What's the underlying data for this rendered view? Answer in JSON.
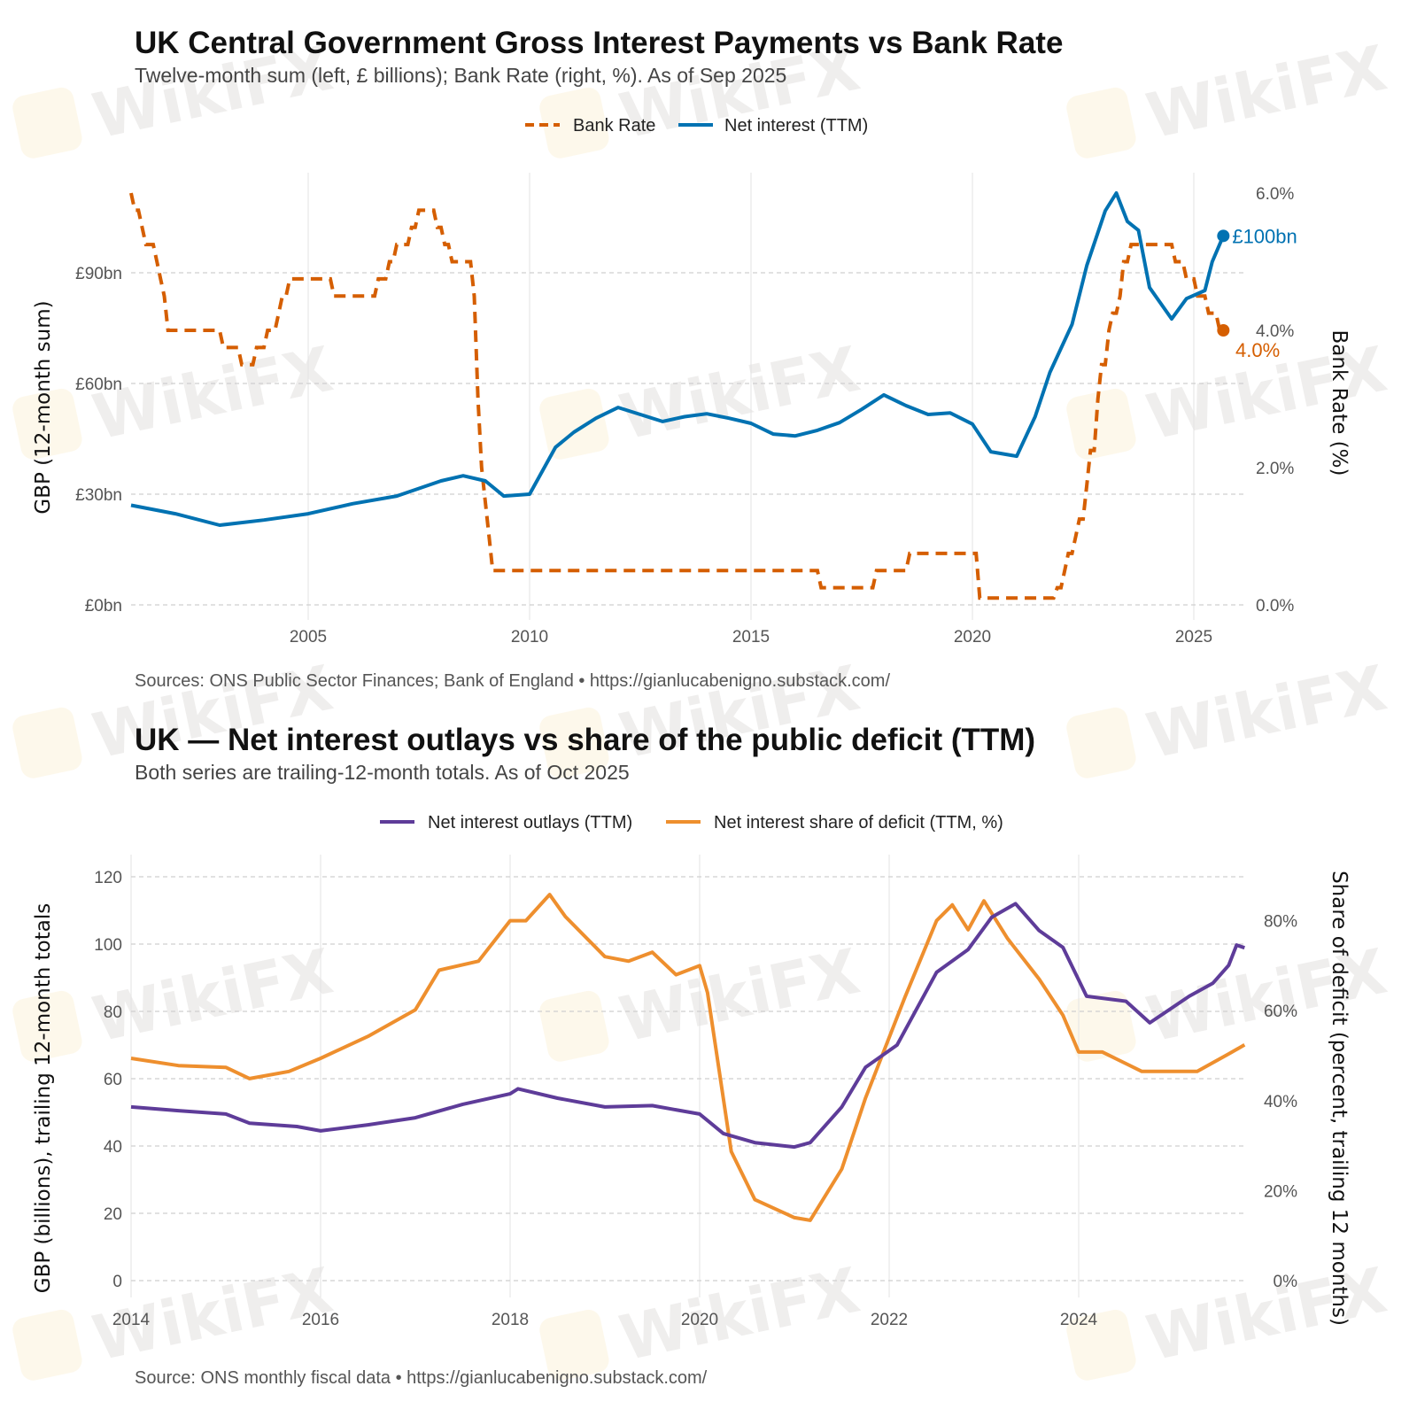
{
  "watermark": "WikiFX",
  "chart_data": [
    {
      "type": "line",
      "title": "UK Central Government Gross Interest Payments vs Bank Rate",
      "subtitle": "Twelve-month sum (left, £ billions); Bank Rate (right, %). As of Sep 2025",
      "caption": "Sources: ONS Public Sector Finances; Bank of England • https://gianlucabenigno.substack.com/",
      "ylabel": "GBP (12-month sum)",
      "ylabel_right": "Bank Rate (%)",
      "xlim": [
        "2001-01",
        "2025-09"
      ],
      "ylim": [
        0,
        112
      ],
      "ylim_right": [
        0,
        6.0
      ],
      "x_ticks": [
        "2005",
        "2010",
        "2015",
        "2020",
        "2025"
      ],
      "y_ticks": [
        "£0bn",
        "£30bn",
        "£60bn",
        "£90bn"
      ],
      "y_tick_values": [
        0,
        30,
        60,
        90
      ],
      "y_right_ticks": [
        "0.0%",
        "2.0%",
        "4.0%",
        "6.0%"
      ],
      "y_right_tick_values": [
        0,
        2,
        4,
        6
      ],
      "grid": true,
      "legend_position": "top",
      "series": [
        {
          "name": "Bank Rate",
          "axis": "right",
          "color": "#D55E00",
          "style": "dashed",
          "step": true,
          "end_label": "4.0%",
          "points": [
            [
              "2001-01",
              6.0
            ],
            [
              "2001-02",
              5.75
            ],
            [
              "2001-04",
              5.5
            ],
            [
              "2001-05",
              5.25
            ],
            [
              "2001-08",
              5.0
            ],
            [
              "2001-09",
              4.75
            ],
            [
              "2001-10",
              4.5
            ],
            [
              "2001-11",
              4.0
            ],
            [
              "2003-02",
              3.75
            ],
            [
              "2003-07",
              3.5
            ],
            [
              "2003-11",
              3.75
            ],
            [
              "2004-02",
              4.0
            ],
            [
              "2004-05",
              4.25
            ],
            [
              "2004-06",
              4.5
            ],
            [
              "2004-08",
              4.75
            ],
            [
              "2005-08",
              4.5
            ],
            [
              "2006-08",
              4.75
            ],
            [
              "2006-11",
              5.0
            ],
            [
              "2007-01",
              5.25
            ],
            [
              "2007-05",
              5.5
            ],
            [
              "2007-07",
              5.75
            ],
            [
              "2007-12",
              5.5
            ],
            [
              "2008-02",
              5.25
            ],
            [
              "2008-04",
              5.0
            ],
            [
              "2008-10",
              4.5
            ],
            [
              "2008-11",
              3.0
            ],
            [
              "2008-12",
              2.0
            ],
            [
              "2009-01",
              1.5
            ],
            [
              "2009-02",
              1.0
            ],
            [
              "2009-03",
              0.5
            ],
            [
              "2016-08",
              0.25
            ],
            [
              "2017-11",
              0.5
            ],
            [
              "2018-08",
              0.75
            ],
            [
              "2020-03",
              0.1
            ],
            [
              "2021-12",
              0.25
            ],
            [
              "2022-02",
              0.5
            ],
            [
              "2022-03",
              0.75
            ],
            [
              "2022-05",
              1.0
            ],
            [
              "2022-06",
              1.25
            ],
            [
              "2022-08",
              1.75
            ],
            [
              "2022-09",
              2.25
            ],
            [
              "2022-11",
              3.0
            ],
            [
              "2022-12",
              3.5
            ],
            [
              "2023-02",
              4.0
            ],
            [
              "2023-03",
              4.25
            ],
            [
              "2023-05",
              4.5
            ],
            [
              "2023-06",
              5.0
            ],
            [
              "2023-08",
              5.25
            ],
            [
              "2024-08",
              5.0
            ],
            [
              "2024-11",
              4.75
            ],
            [
              "2025-02",
              4.5
            ],
            [
              "2025-05",
              4.25
            ],
            [
              "2025-08",
              4.0
            ],
            [
              "2025-09",
              4.0
            ]
          ]
        },
        {
          "name": "Net interest (TTM)",
          "axis": "left",
          "color": "#0072B2",
          "style": "solid",
          "end_label": "£100bn",
          "points": [
            [
              "2001-01",
              27.0
            ],
            [
              "2002-01",
              24.7
            ],
            [
              "2003-01",
              21.6
            ],
            [
              "2004-01",
              23.0
            ],
            [
              "2005-01",
              24.7
            ],
            [
              "2006-01",
              27.4
            ],
            [
              "2007-01",
              29.5
            ],
            [
              "2008-01",
              33.6
            ],
            [
              "2008-07",
              35.0
            ],
            [
              "2009-01",
              33.6
            ],
            [
              "2009-06",
              29.5
            ],
            [
              "2010-01",
              30.0
            ],
            [
              "2010-08",
              42.7
            ],
            [
              "2011-01",
              46.8
            ],
            [
              "2011-07",
              50.6
            ],
            [
              "2012-01",
              53.5
            ],
            [
              "2012-07",
              51.6
            ],
            [
              "2013-01",
              49.7
            ],
            [
              "2013-07",
              51.0
            ],
            [
              "2014-01",
              51.8
            ],
            [
              "2014-07",
              50.6
            ],
            [
              "2015-01",
              49.2
            ],
            [
              "2015-07",
              46.3
            ],
            [
              "2016-01",
              45.8
            ],
            [
              "2016-07",
              47.3
            ],
            [
              "2017-01",
              49.4
            ],
            [
              "2017-07",
              53.0
            ],
            [
              "2018-01",
              56.9
            ],
            [
              "2018-07",
              54.0
            ],
            [
              "2019-01",
              51.6
            ],
            [
              "2019-07",
              52.0
            ],
            [
              "2020-01",
              49.0
            ],
            [
              "2020-06",
              41.5
            ],
            [
              "2021-01",
              40.3
            ],
            [
              "2021-06",
              51.0
            ],
            [
              "2021-10",
              63.0
            ],
            [
              "2022-04",
              76.0
            ],
            [
              "2022-08",
              92.0
            ],
            [
              "2023-01",
              106.8
            ],
            [
              "2023-04",
              111.6
            ],
            [
              "2023-07",
              103.9
            ],
            [
              "2023-10",
              101.5
            ],
            [
              "2024-01",
              86.0
            ],
            [
              "2024-07",
              77.5
            ],
            [
              "2024-11",
              83.0
            ],
            [
              "2025-04",
              85.2
            ],
            [
              "2025-06",
              93.0
            ],
            [
              "2025-09",
              100.0
            ]
          ]
        }
      ]
    },
    {
      "type": "line",
      "title": "UK — Net interest outlays vs share of the public deficit (TTM)",
      "subtitle": "Both series are trailing-12-month totals. As of Oct 2025",
      "caption": "Source: ONS monthly fiscal data • https://gianlucabenigno.substack.com/",
      "ylabel": "GBP (billions), trailing 12-month totals",
      "ylabel_right": "Share of deficit (percent, trailing 12 months)",
      "xlim": [
        "2014-01",
        "2025-10"
      ],
      "ylim": [
        0,
        120
      ],
      "ylim_right": [
        0,
        89
      ],
      "x_ticks": [
        "2014",
        "2016",
        "2018",
        "2020",
        "2022",
        "2024"
      ],
      "y_ticks": [
        "0",
        "20",
        "40",
        "60",
        "80",
        "100",
        "120"
      ],
      "y_tick_values": [
        0,
        20,
        40,
        60,
        80,
        100,
        120
      ],
      "y_right_ticks": [
        "0%",
        "20%",
        "40%",
        "60%",
        "80%"
      ],
      "y_right_tick_values": [
        0,
        20,
        40,
        60,
        80
      ],
      "grid": true,
      "legend_position": "top",
      "series": [
        {
          "name": "Net interest outlays (TTM)",
          "axis": "left",
          "color": "#5E3C99",
          "points": [
            [
              "2014-01",
              51.6
            ],
            [
              "2014-07",
              50.5
            ],
            [
              "2015-01",
              49.5
            ],
            [
              "2015-04",
              46.8
            ],
            [
              "2015-10",
              45.8
            ],
            [
              "2016-01",
              44.5
            ],
            [
              "2016-07",
              46.3
            ],
            [
              "2017-01",
              48.4
            ],
            [
              "2017-07",
              52.4
            ],
            [
              "2018-01",
              55.5
            ],
            [
              "2018-02",
              57.0
            ],
            [
              "2018-07",
              54.2
            ],
            [
              "2019-01",
              51.6
            ],
            [
              "2019-07",
              52.0
            ],
            [
              "2020-01",
              49.5
            ],
            [
              "2020-04",
              43.7
            ],
            [
              "2020-08",
              41.0
            ],
            [
              "2021-01",
              39.7
            ],
            [
              "2021-03",
              41.0
            ],
            [
              "2021-07",
              51.6
            ],
            [
              "2021-10",
              63.4
            ],
            [
              "2022-02",
              70.0
            ],
            [
              "2022-07",
              91.6
            ],
            [
              "2022-11",
              98.4
            ],
            [
              "2023-02",
              108.0
            ],
            [
              "2023-05",
              112.0
            ],
            [
              "2023-08",
              104.0
            ],
            [
              "2023-11",
              99.0
            ],
            [
              "2024-02",
              84.5
            ],
            [
              "2024-07",
              83.0
            ],
            [
              "2024-10",
              76.6
            ],
            [
              "2025-03",
              84.5
            ],
            [
              "2025-06",
              88.4
            ],
            [
              "2025-08",
              93.7
            ],
            [
              "2025-09",
              99.7
            ],
            [
              "2025-10",
              98.9
            ]
          ]
        },
        {
          "name": "Net interest share of deficit (TTM, %)",
          "axis": "right",
          "color": "#EE8F2E",
          "points": [
            [
              "2014-01",
              49.4
            ],
            [
              "2014-07",
              47.8
            ],
            [
              "2015-01",
              47.4
            ],
            [
              "2015-04",
              44.9
            ],
            [
              "2015-09",
              46.5
            ],
            [
              "2016-01",
              49.4
            ],
            [
              "2016-07",
              54.3
            ],
            [
              "2017-01",
              60.2
            ],
            [
              "2017-04",
              69.0
            ],
            [
              "2017-09",
              71.0
            ],
            [
              "2018-01",
              80.0
            ],
            [
              "2018-03",
              80.0
            ],
            [
              "2018-06",
              85.8
            ],
            [
              "2018-08",
              80.9
            ],
            [
              "2019-01",
              72.0
            ],
            [
              "2019-04",
              71.0
            ],
            [
              "2019-07",
              73.0
            ],
            [
              "2019-10",
              68.0
            ],
            [
              "2020-01",
              70.0
            ],
            [
              "2020-02",
              64.0
            ],
            [
              "2020-05",
              28.7
            ],
            [
              "2020-08",
              18.0
            ],
            [
              "2021-01",
              14.0
            ],
            [
              "2021-03",
              13.4
            ],
            [
              "2021-07",
              24.8
            ],
            [
              "2021-10",
              40.6
            ],
            [
              "2022-03",
              63.0
            ],
            [
              "2022-07",
              80.0
            ],
            [
              "2022-09",
              83.5
            ],
            [
              "2022-11",
              78.0
            ],
            [
              "2023-01",
              84.4
            ],
            [
              "2023-04",
              76.0
            ],
            [
              "2023-08",
              67.0
            ],
            [
              "2023-11",
              59.0
            ],
            [
              "2024-01",
              50.8
            ],
            [
              "2024-04",
              50.8
            ],
            [
              "2024-09",
              46.5
            ],
            [
              "2025-01",
              46.5
            ],
            [
              "2025-04",
              46.5
            ],
            [
              "2025-08",
              50.4
            ],
            [
              "2025-10",
              52.4
            ]
          ]
        }
      ]
    }
  ]
}
